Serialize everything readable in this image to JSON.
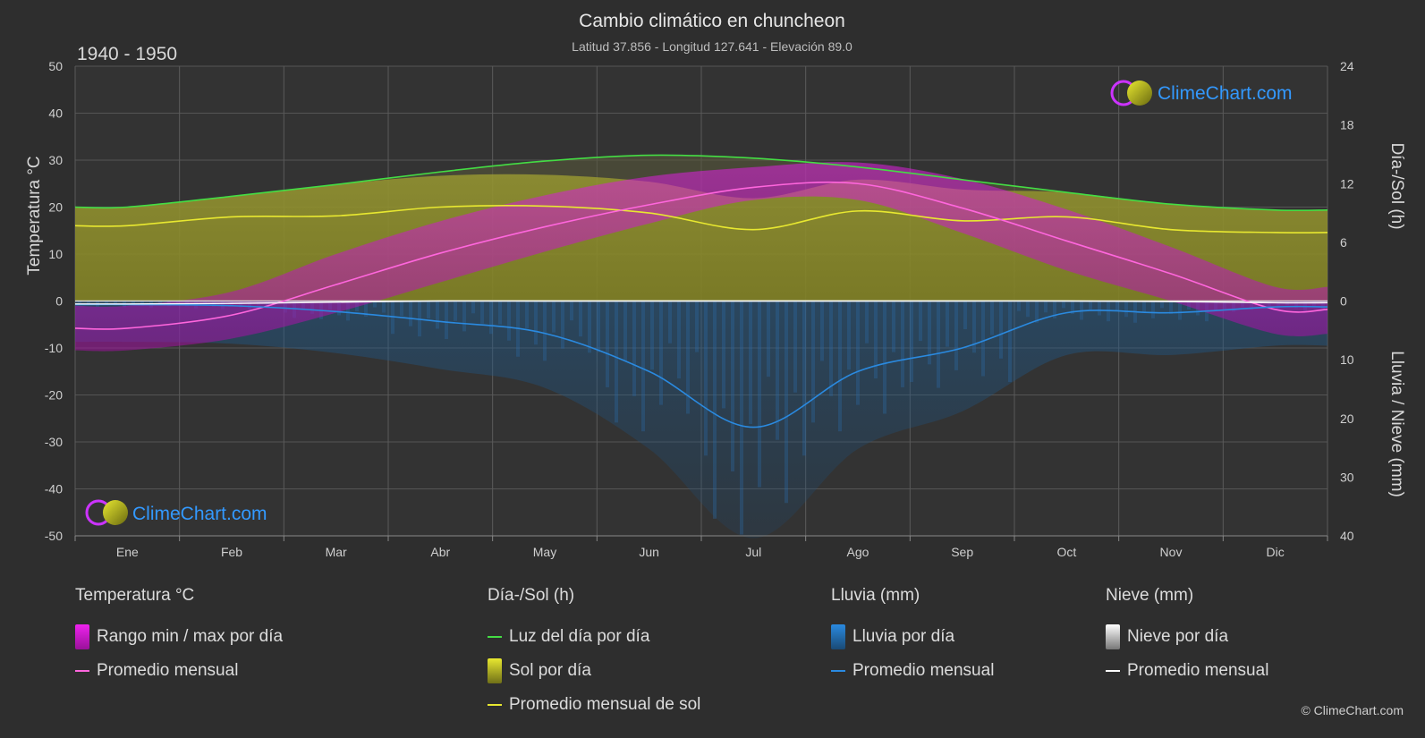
{
  "chart_data": {
    "type": "area",
    "title": "Cambio climático en chuncheon",
    "subtitle": "Latitud 37.856 - Longitud 127.641 - Elevación 89.0",
    "period": "1940 - 1950",
    "categories": [
      "Ene",
      "Feb",
      "Mar",
      "Abr",
      "May",
      "Jun",
      "Jul",
      "Ago",
      "Sep",
      "Oct",
      "Nov",
      "Dic"
    ],
    "left_axis": {
      "label": "Temperatura °C",
      "ylim": [
        -50,
        50
      ],
      "ticks": [
        "50",
        "40",
        "30",
        "20",
        "10",
        "0",
        "-10",
        "-20",
        "-30",
        "-40",
        "-50"
      ]
    },
    "right_axis_top": {
      "label": "Día-/Sol (h)",
      "ylim": [
        0,
        24
      ],
      "ticks": [
        "24",
        "18",
        "12",
        "6",
        "0"
      ]
    },
    "right_axis_bottom": {
      "label": "Lluvia / Nieve (mm)",
      "ylim": [
        0,
        40
      ],
      "ticks": [
        "0",
        "10",
        "20",
        "30",
        "40"
      ]
    },
    "series": [
      {
        "name": "Luz del día por día",
        "axis": "sun_h",
        "color": "#44dd44",
        "values": [
          9.6,
          10.7,
          11.9,
          13.2,
          14.3,
          14.9,
          14.6,
          13.7,
          12.4,
          11.1,
          9.9,
          9.3
        ]
      },
      {
        "name": "Promedio mensual de sol",
        "axis": "sun_h",
        "color": "#e8e830",
        "values": [
          7.7,
          8.6,
          8.7,
          9.6,
          9.7,
          9.0,
          7.3,
          9.2,
          8.2,
          8.6,
          7.3,
          7.0
        ]
      },
      {
        "name": "Promedio mensual",
        "group": "Temperatura °C",
        "axis": "temp_c",
        "color": "#ff66dd",
        "values": [
          -5.8,
          -3.0,
          3.5,
          10.2,
          15.8,
          20.5,
          24.2,
          25.0,
          19.8,
          12.8,
          5.8,
          -1.8
        ]
      },
      {
        "name": "Promedio mensual",
        "group": "Lluvia (mm)",
        "axis": "precip_mm",
        "color": "#2a8ae0",
        "values": [
          0.6,
          0.8,
          1.8,
          3.5,
          5.5,
          12.0,
          21.5,
          12.0,
          8.0,
          2.0,
          2.0,
          1.0
        ]
      },
      {
        "name": "Promedio mensual",
        "group": "Nieve (mm)",
        "axis": "precip_mm",
        "color": "#ffffff",
        "values": [
          0.5,
          0.4,
          0.2,
          0,
          0,
          0,
          0,
          0,
          0,
          0,
          0.1,
          0.3
        ]
      },
      {
        "name": "Rango min / max por día",
        "group": "Temperatura °C",
        "axis": "temp_c",
        "color": "#cc22cc",
        "min": [
          -10.5,
          -8.0,
          -2.5,
          4.0,
          10.5,
          16.5,
          21.5,
          21.5,
          14.5,
          6.5,
          0.0,
          -7.0
        ],
        "max": [
          -1.0,
          2.0,
          10.0,
          17.0,
          22.5,
          26.5,
          28.5,
          29.5,
          26.0,
          19.5,
          11.5,
          3.0
        ]
      }
    ],
    "grid": true
  },
  "legend": {
    "temp": {
      "title": "Temperatura °C",
      "items": [
        "Rango min / max por día",
        "Promedio mensual"
      ]
    },
    "sun": {
      "title": "Día-/Sol (h)",
      "items": [
        "Luz del día por día",
        "Sol por día",
        "Promedio mensual de sol"
      ]
    },
    "rain": {
      "title": "Lluvia (mm)",
      "items": [
        "Lluvia por día",
        "Promedio mensual"
      ]
    },
    "snow": {
      "title": "Nieve (mm)",
      "items": [
        "Nieve por día",
        "Promedio mensual"
      ]
    }
  },
  "brand": "ClimeChart.com",
  "copyright": "© ClimeChart.com",
  "colors": {
    "background": "#2e2e2e",
    "grid": "#5a5a5a",
    "brand_text": "#3399ff"
  }
}
